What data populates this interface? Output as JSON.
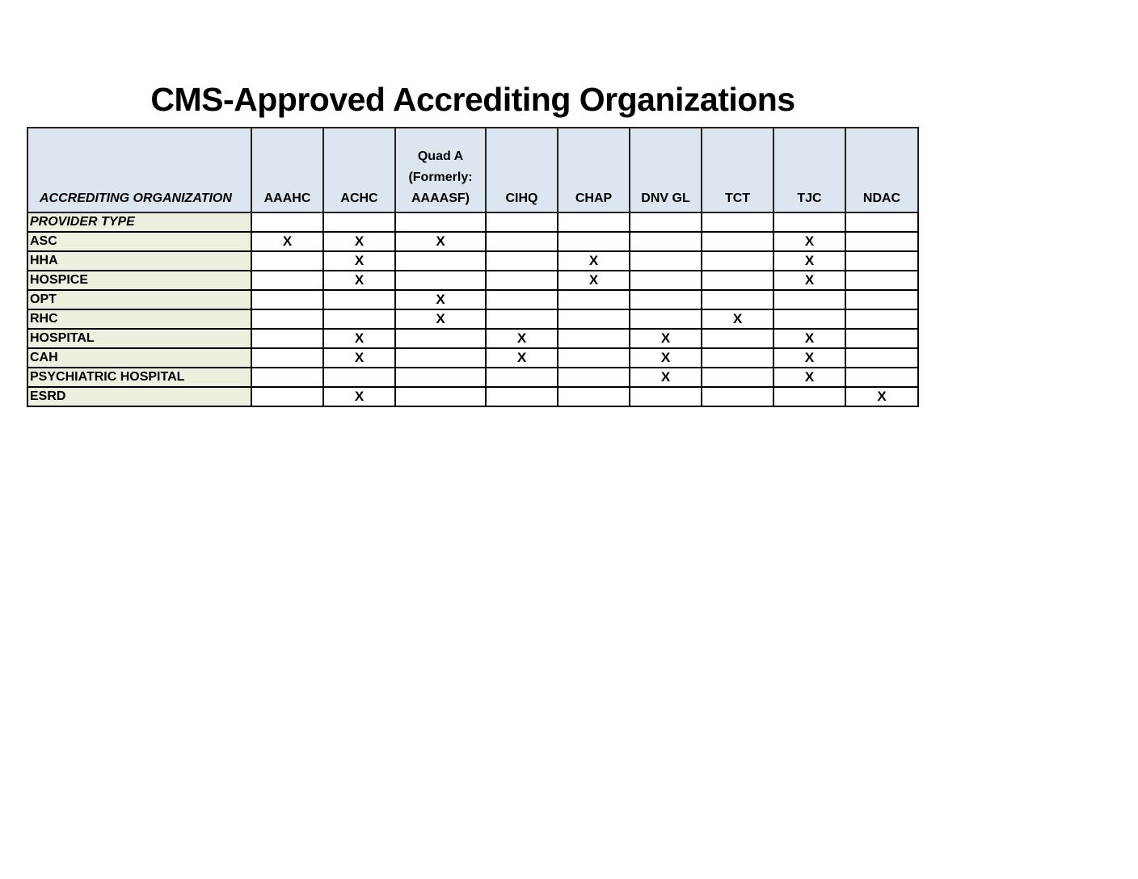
{
  "title": "CMS-Approved Accrediting Organizations",
  "table": {
    "corner_label": "ACCREDITING ORGANIZATION",
    "columns": [
      "AAAHC",
      "ACHC",
      "Quad A (Formerly: AAAASF)",
      "CIHQ",
      "CHAP",
      "DNV GL",
      "TCT",
      "TJC",
      "NDAC"
    ],
    "column_lines": [
      [
        "AAAHC"
      ],
      [
        "ACHC"
      ],
      [
        "Quad A",
        "(Formerly:",
        "AAAASF)"
      ],
      [
        "CIHQ"
      ],
      [
        "CHAP"
      ],
      [
        "DNV GL"
      ],
      [
        "TCT"
      ],
      [
        "TJC"
      ],
      [
        "NDAC"
      ]
    ],
    "rows": [
      {
        "label": "PROVIDER TYPE",
        "marks": [
          "",
          "",
          "",
          "",
          "",
          "",
          "",
          "",
          ""
        ]
      },
      {
        "label": "ASC",
        "marks": [
          "X",
          "X",
          "X",
          "",
          "",
          "",
          "",
          "X",
          ""
        ]
      },
      {
        "label": "HHA",
        "marks": [
          "",
          "X",
          "",
          "",
          "X",
          "",
          "",
          "X",
          ""
        ]
      },
      {
        "label": "HOSPICE",
        "marks": [
          "",
          "X",
          "",
          "",
          "X",
          "",
          "",
          "X",
          ""
        ]
      },
      {
        "label": "OPT",
        "marks": [
          "",
          "",
          "X",
          "",
          "",
          "",
          "",
          "",
          ""
        ]
      },
      {
        "label": "RHC",
        "marks": [
          "",
          "",
          "X",
          "",
          "",
          "",
          "X",
          "",
          ""
        ]
      },
      {
        "label": "HOSPITAL",
        "marks": [
          "",
          "X",
          "",
          "X",
          "",
          "X",
          "",
          "X",
          ""
        ]
      },
      {
        "label": "CAH",
        "marks": [
          "",
          "X",
          "",
          "X",
          "",
          "X",
          "",
          "X",
          ""
        ]
      },
      {
        "label": "PSYCHIATRIC HOSPITAL",
        "marks": [
          "",
          "",
          "",
          "",
          "",
          "X",
          "",
          "X",
          ""
        ]
      },
      {
        "label": "ESRD",
        "marks": [
          "",
          "X",
          "",
          "",
          "",
          "",
          "",
          "",
          "X"
        ]
      }
    ]
  },
  "colors": {
    "header_bg": "#dce6f1",
    "label_bg": "#ebf1de"
  }
}
